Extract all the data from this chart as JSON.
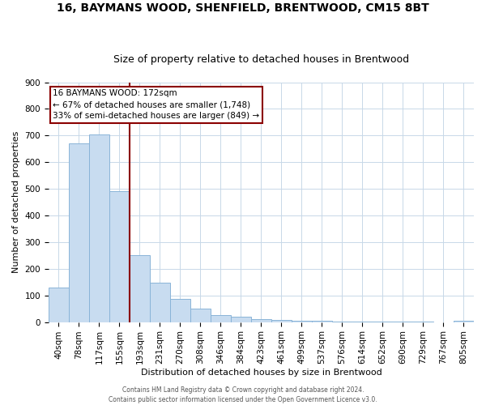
{
  "title1": "16, BAYMANS WOOD, SHENFIELD, BRENTWOOD, CM15 8BT",
  "title2": "Size of property relative to detached houses in Brentwood",
  "xlabel": "Distribution of detached houses by size in Brentwood",
  "ylabel": "Number of detached properties",
  "footer1": "Contains HM Land Registry data © Crown copyright and database right 2024.",
  "footer2": "Contains public sector information licensed under the Open Government Licence v3.0.",
  "bin_labels": [
    "40sqm",
    "78sqm",
    "117sqm",
    "155sqm",
    "193sqm",
    "231sqm",
    "270sqm",
    "308sqm",
    "346sqm",
    "384sqm",
    "423sqm",
    "461sqm",
    "499sqm",
    "537sqm",
    "576sqm",
    "614sqm",
    "652sqm",
    "690sqm",
    "729sqm",
    "767sqm",
    "805sqm"
  ],
  "bar_values": [
    130,
    672,
    705,
    490,
    252,
    148,
    88,
    50,
    25,
    20,
    12,
    8,
    5,
    4,
    3,
    2,
    2,
    2,
    1,
    0,
    6
  ],
  "bar_color": "#c8dcf0",
  "bar_edge_color": "#8ab4d8",
  "vline_color": "#8b0000",
  "vline_x_index": 3.5,
  "annotation_line1": "16 BAYMANS WOOD: 172sqm",
  "annotation_line2": "← 67% of detached houses are smaller (1,748)",
  "annotation_line3": "33% of semi-detached houses are larger (849) →",
  "annotation_box_color": "#ffffff",
  "annotation_box_edge": "#8b0000",
  "ylim": [
    0,
    900
  ],
  "yticks": [
    0,
    100,
    200,
    300,
    400,
    500,
    600,
    700,
    800,
    900
  ],
  "bg_color": "#ffffff",
  "grid_color": "#c8d8e8",
  "title1_fontsize": 10,
  "title2_fontsize": 9,
  "xlabel_fontsize": 8,
  "ylabel_fontsize": 8,
  "tick_fontsize": 7.5
}
